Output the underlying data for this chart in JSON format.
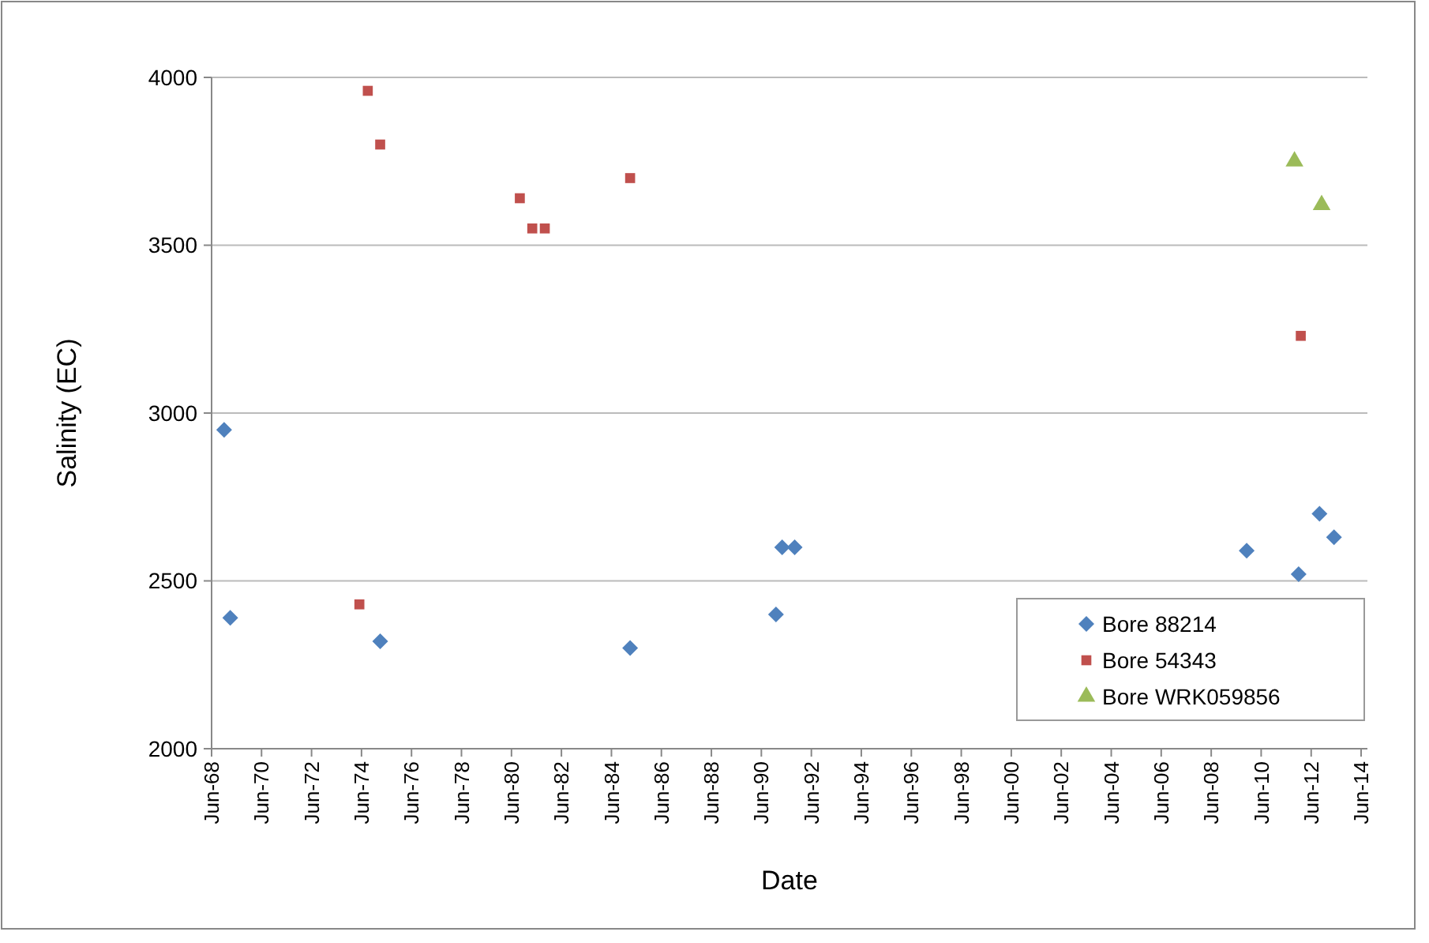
{
  "chart_data": {
    "type": "scatter",
    "xlabel": "Date",
    "ylabel": "Salinity (EC)",
    "xlim": [
      "1968-06",
      "2014-09"
    ],
    "xticks": [
      {
        "value": "1968-06",
        "label": "Jun-68"
      },
      {
        "value": "1970-06",
        "label": "Jun-70"
      },
      {
        "value": "1972-06",
        "label": "Jun-72"
      },
      {
        "value": "1974-06",
        "label": "Jun-74"
      },
      {
        "value": "1976-06",
        "label": "Jun-76"
      },
      {
        "value": "1978-06",
        "label": "Jun-78"
      },
      {
        "value": "1980-06",
        "label": "Jun-80"
      },
      {
        "value": "1982-06",
        "label": "Jun-82"
      },
      {
        "value": "1984-06",
        "label": "Jun-84"
      },
      {
        "value": "1986-06",
        "label": "Jun-86"
      },
      {
        "value": "1988-06",
        "label": "Jun-88"
      },
      {
        "value": "1990-06",
        "label": "Jun-90"
      },
      {
        "value": "1992-06",
        "label": "Jun-92"
      },
      {
        "value": "1994-06",
        "label": "Jun-94"
      },
      {
        "value": "1996-06",
        "label": "Jun-96"
      },
      {
        "value": "1998-06",
        "label": "Jun-98"
      },
      {
        "value": "2000-06",
        "label": "Jun-00"
      },
      {
        "value": "2002-06",
        "label": "Jun-02"
      },
      {
        "value": "2004-06",
        "label": "Jun-04"
      },
      {
        "value": "2006-06",
        "label": "Jun-06"
      },
      {
        "value": "2008-06",
        "label": "Jun-08"
      },
      {
        "value": "2010-06",
        "label": "Jun-10"
      },
      {
        "value": "2012-06",
        "label": "Jun-12"
      },
      {
        "value": "2014-06",
        "label": "Jun-14"
      }
    ],
    "ylim": [
      2000,
      4000
    ],
    "yticks": [
      2000,
      2500,
      3000,
      3500,
      4000
    ],
    "grid": "y",
    "legend": "bottom right",
    "series": [
      {
        "name": "Bore 88214",
        "color": "#4f81bd",
        "marker": "diamond",
        "x": [
          "1968-12",
          "1969-03",
          "1975-03",
          "1985-03",
          "1991-01",
          "1991-04",
          "1991-10",
          "2009-11",
          "2011-12",
          "2012-10",
          "2013-05"
        ],
        "values": [
          2950,
          2390,
          2320,
          2300,
          2400,
          2600,
          2600,
          2590,
          2520,
          2700,
          2630
        ]
      },
      {
        "name": "Bore 54343",
        "color": "#c0504d",
        "marker": "square",
        "x": [
          "1974-05",
          "1974-09",
          "1975-03",
          "1980-10",
          "1981-04",
          "1981-10",
          "1985-03",
          "2012-01"
        ],
        "values": [
          2430,
          3960,
          3800,
          3640,
          3550,
          3550,
          3700,
          3230
        ]
      },
      {
        "name": "Bore WRK059856",
        "color": "#9bbb59",
        "marker": "triangle",
        "x": [
          "2011-10",
          "2012-11"
        ],
        "values": [
          3750,
          3620
        ]
      }
    ]
  }
}
